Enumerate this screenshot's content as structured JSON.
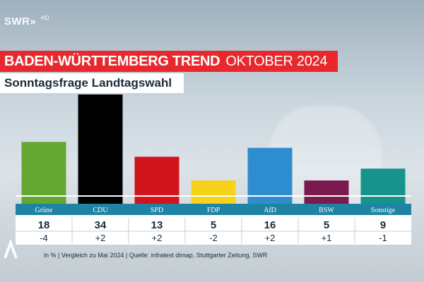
{
  "channel": {
    "logo": "SWR»",
    "hd": "HD"
  },
  "header": {
    "title_main": "BADEN-WÜRTTEMBERG TREND",
    "title_sub": "OKTOBER 2024",
    "subtitle": "Sonntagsfrage Landtagswahl"
  },
  "footer": {
    "source": "in % | Vergleich zu Mai 2024 | Quelle: infratest dimap, Stuttgarter Zeitung, SWR"
  },
  "colors": {
    "title_bar": "#e8282d",
    "label_band": "#1f83a3",
    "bar_outline": "#ffffff"
  },
  "chart_data": {
    "type": "bar",
    "title": "Sonntagsfrage Landtagswahl",
    "categories": [
      "Grüne",
      "CDU",
      "SPD",
      "FDP",
      "AfD",
      "BSW",
      "Sonstige"
    ],
    "values": [
      18,
      34,
      13,
      5,
      16,
      5,
      9
    ],
    "changes": [
      "-4",
      "+2",
      "+2",
      "-2",
      "+2",
      "+1",
      "-1"
    ],
    "bar_colors": [
      "#64a732",
      "#000000",
      "#d2141c",
      "#f6d31a",
      "#2e8dcf",
      "#7a1a4e",
      "#18938c"
    ],
    "ylim": [
      0,
      34
    ],
    "grid": false,
    "legend": "none"
  }
}
